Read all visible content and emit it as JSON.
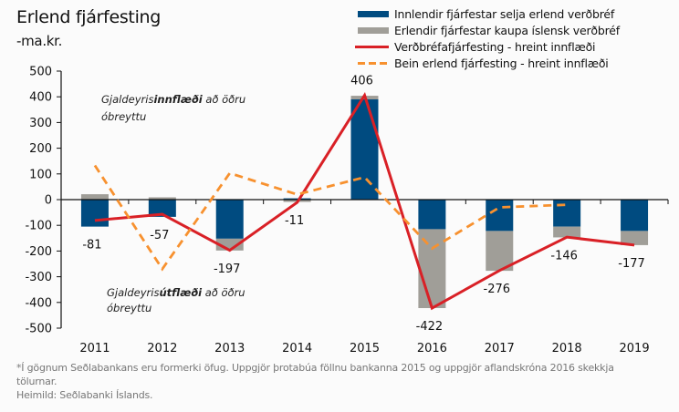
{
  "chart_data": {
    "type": "bar",
    "title": "Erlend fjárfesting",
    "subtitle": "-ma.kr.",
    "xlabel": "",
    "ylabel": "",
    "ylim": [
      -500,
      500
    ],
    "yticks": [
      500,
      400,
      300,
      200,
      100,
      0,
      -100,
      -200,
      -300,
      -400,
      -500
    ],
    "grid": false,
    "legend_position": "top-right",
    "categories": [
      "2011",
      "2012",
      "2013",
      "2014",
      "2015",
      "2016",
      "2017",
      "2018",
      "2019"
    ],
    "series": [
      {
        "name": "Innlendir fjárfestar selja erlend verðbréf",
        "type": "bar",
        "stacked": true,
        "color": "#004b80",
        "values": [
          -105,
          -67,
          -152,
          5,
          390,
          -115,
          -122,
          -105,
          -122
        ]
      },
      {
        "name": "Erlendir fjárfestar kaupa íslensk verðbréf",
        "type": "bar",
        "stacked": true,
        "color": "#a09e98",
        "values": [
          21,
          9,
          -46,
          -9,
          14,
          -307,
          -155,
          -42,
          -55
        ]
      },
      {
        "name": "Verðbréfafjárfesting - hreint innflæði",
        "type": "line",
        "color": "#d92026",
        "values": [
          -81,
          -57,
          -197,
          -11,
          406,
          -422,
          -276,
          -146,
          -177
        ]
      },
      {
        "name": "Bein erlend fjárfesting - hreint innflæði",
        "type": "line",
        "style": "dashed",
        "color": "#f7912f",
        "values": [
          133,
          -270,
          103,
          20,
          87,
          -190,
          -30,
          -20,
          null
        ]
      }
    ],
    "data_labels": [
      "-81",
      "-57",
      "-197",
      "-11",
      "406",
      "-422",
      "-276",
      "-146",
      "-177"
    ],
    "annotations": [
      {
        "text_normal": "Gjaldeyris",
        "text_bold": "innflæði",
        "text_after": " að öðru",
        "line2": "óbreyttu"
      },
      {
        "text_normal": "Gjaldeyris",
        "text_bold": "útflæði",
        "text_after": " að öðru",
        "line2": "óbreyttu"
      }
    ]
  },
  "footer": {
    "note_line1": "*Í gögnum Seðlabankans eru formerki öfug. Uppgjör þrotabúa föllnu bankanna 2015 og uppgjör aflandskróna 2016 skekkja",
    "note_line2": "tölurnar.",
    "source": "Heimild: Seðlabanki Íslands."
  }
}
